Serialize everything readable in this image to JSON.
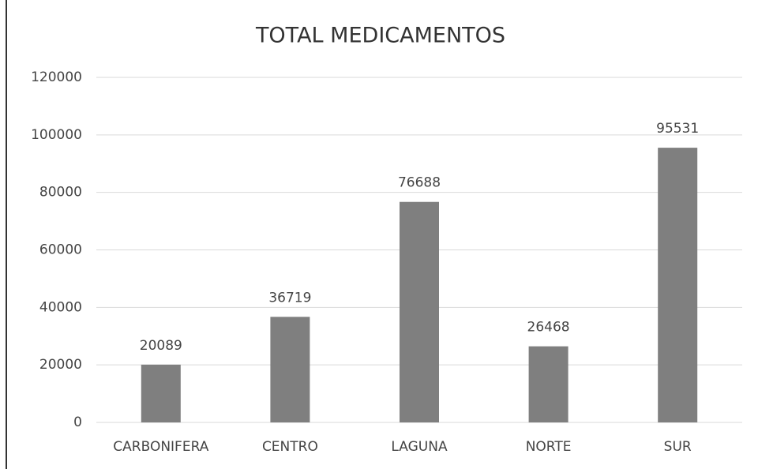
{
  "chart_data": {
    "type": "bar",
    "title": "TOTAL MEDICAMENTOS",
    "categories": [
      "CARBONIFERA",
      "CENTRO",
      "LAGUNA",
      "NORTE",
      "SUR"
    ],
    "values": [
      20089,
      36719,
      76688,
      26468,
      95531
    ],
    "color": "#7f7f7f",
    "ylim": [
      0,
      120000
    ],
    "yticks": [
      0,
      20000,
      40000,
      60000,
      80000,
      100000,
      120000
    ],
    "grid": true
  }
}
